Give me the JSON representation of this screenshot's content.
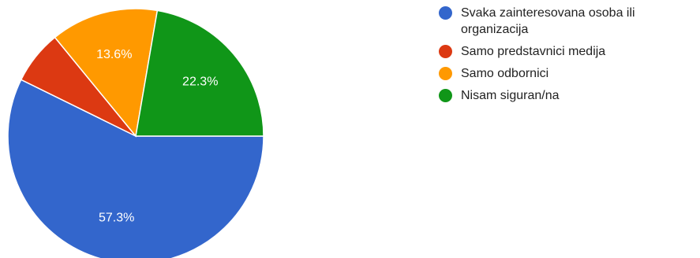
{
  "chart_data": {
    "type": "pie",
    "start_angle_deg": 0,
    "direction": "clockwise",
    "legend_position": "right",
    "series": [
      {
        "name": "Svaka zainteresovana osoba ili organizacija",
        "value": 57.3,
        "display_label": "57.3%",
        "color": "#3366cc"
      },
      {
        "name": "Samo predstavnici medija",
        "value": 6.8,
        "display_label": "",
        "color": "#dc3912"
      },
      {
        "name": "Samo odbornici",
        "value": 13.6,
        "display_label": "13.6%",
        "color": "#ff9900"
      },
      {
        "name": "Nisam siguran/na",
        "value": 22.3,
        "display_label": "22.3%",
        "color": "#109618"
      }
    ]
  }
}
